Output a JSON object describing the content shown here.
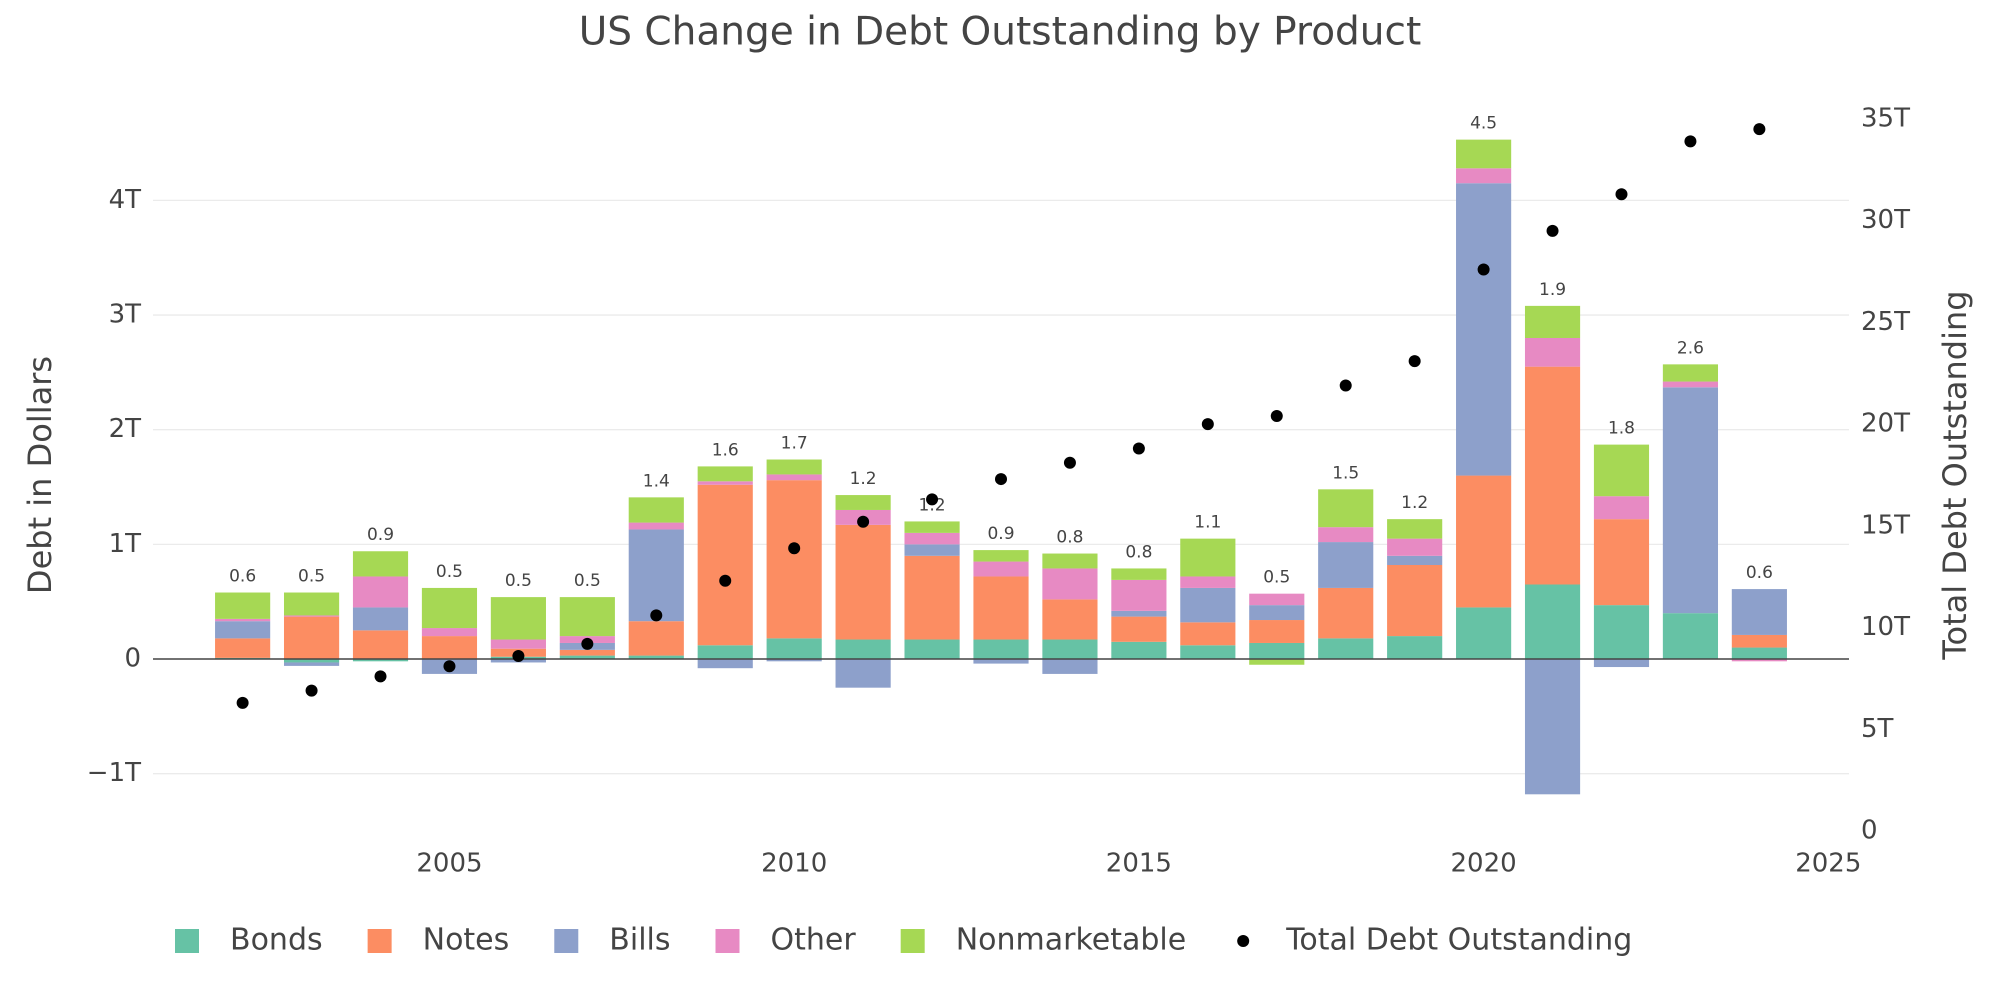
{
  "chart_data": {
    "type": "bar",
    "barmode": "relative",
    "title": "US Change in Debt Outstanding by Product",
    "y_label": "Debt in Dollars",
    "y2_label": "Total Debt Outstanding",
    "x": [
      2002,
      2003,
      2004,
      2005,
      2006,
      2007,
      2008,
      2009,
      2010,
      2011,
      2012,
      2013,
      2014,
      2015,
      2016,
      2017,
      2018,
      2019,
      2020,
      2021,
      2022,
      2023,
      2024
    ],
    "xlim": [
      2000.7,
      2025.3
    ],
    "xticks": [
      2005,
      2010,
      2015,
      2020,
      2025
    ],
    "ylim": [
      -1.5,
      4.71
    ],
    "yticks": [
      {
        "value": -1,
        "label": "−1T"
      },
      0,
      {
        "value": 1,
        "label": "1T"
      },
      {
        "value": 2,
        "label": "2T"
      },
      {
        "value": 3,
        "label": "3T"
      },
      {
        "value": 4,
        "label": "4T"
      }
    ],
    "y2lim": [
      0,
      35
    ],
    "y2ticks": [
      0,
      {
        "value": 5,
        "label": "5T"
      },
      {
        "value": 10,
        "label": "10T"
      },
      {
        "value": 15,
        "label": "15T"
      },
      {
        "value": 20,
        "label": "20T"
      },
      {
        "value": 25,
        "label": "25T"
      },
      {
        "value": 30,
        "label": "30T"
      },
      {
        "value": 35,
        "label": "35T"
      }
    ],
    "grid": true,
    "legend": "bottom",
    "series": [
      {
        "name": "Bonds",
        "color": "#66c2a5",
        "values": [
          0.01,
          -0.03,
          -0.02,
          0,
          0.02,
          0.03,
          0.03,
          0.12,
          0.18,
          0.17,
          0.17,
          0.17,
          0.17,
          0.15,
          0.12,
          0.14,
          0.18,
          0.2,
          0.45,
          0.65,
          0.47,
          0.4,
          0.1
        ]
      },
      {
        "name": "Notes",
        "color": "#fc8d62",
        "values": [
          0.17,
          0.37,
          0.25,
          0.2,
          0.07,
          0.05,
          0.3,
          1.4,
          1.38,
          1.0,
          0.73,
          0.55,
          0.35,
          0.22,
          0.2,
          0.2,
          0.44,
          0.62,
          1.15,
          1.9,
          0.75,
          0.0,
          0.11
        ]
      },
      {
        "name": "Bills",
        "color": "#8da0cb",
        "values": [
          0.15,
          -0.03,
          0.2,
          -0.13,
          -0.03,
          0.06,
          0.8,
          -0.08,
          -0.02,
          -0.25,
          0.1,
          -0.04,
          -0.13,
          0.05,
          0.3,
          0.13,
          0.4,
          0.08,
          2.55,
          -1.18,
          -0.07,
          1.97,
          0.4
        ]
      },
      {
        "name": "Other",
        "color": "#e78ac3",
        "values": [
          0.02,
          0.01,
          0.27,
          0.07,
          0.08,
          0.06,
          0.06,
          0.03,
          0.05,
          0.13,
          0.1,
          0.13,
          0.27,
          0.27,
          0.1,
          0.1,
          0.13,
          0.15,
          0.13,
          0.25,
          0.2,
          0.05,
          -0.02
        ]
      },
      {
        "name": "Nonmarketable",
        "color": "#a6d854",
        "values": [
          0.23,
          0.2,
          0.22,
          0.35,
          0.37,
          0.34,
          0.22,
          0.13,
          0.13,
          0.13,
          0.1,
          0.1,
          0.13,
          0.1,
          0.33,
          -0.05,
          0.33,
          0.17,
          0.25,
          0.28,
          0.45,
          0.15,
          0.0
        ]
      },
      {
        "name": "Total Debt Outstanding",
        "type": "scatter",
        "axis": "y2",
        "color": "#000000",
        "values": [
          6.3,
          6.9,
          7.6,
          8.1,
          8.6,
          9.2,
          10.6,
          12.3,
          13.9,
          15.2,
          16.3,
          17.3,
          18.1,
          18.8,
          20.0,
          20.4,
          21.9,
          23.1,
          27.6,
          29.5,
          31.3,
          33.9,
          34.5
        ]
      }
    ],
    "totals": [
      0.6,
      0.5,
      0.9,
      0.5,
      0.5,
      0.5,
      1.4,
      1.6,
      1.7,
      1.2,
      1.2,
      0.9,
      0.8,
      0.8,
      1.1,
      0.5,
      1.5,
      1.2,
      4.5,
      1.9,
      1.8,
      2.6,
      0.6
    ]
  }
}
